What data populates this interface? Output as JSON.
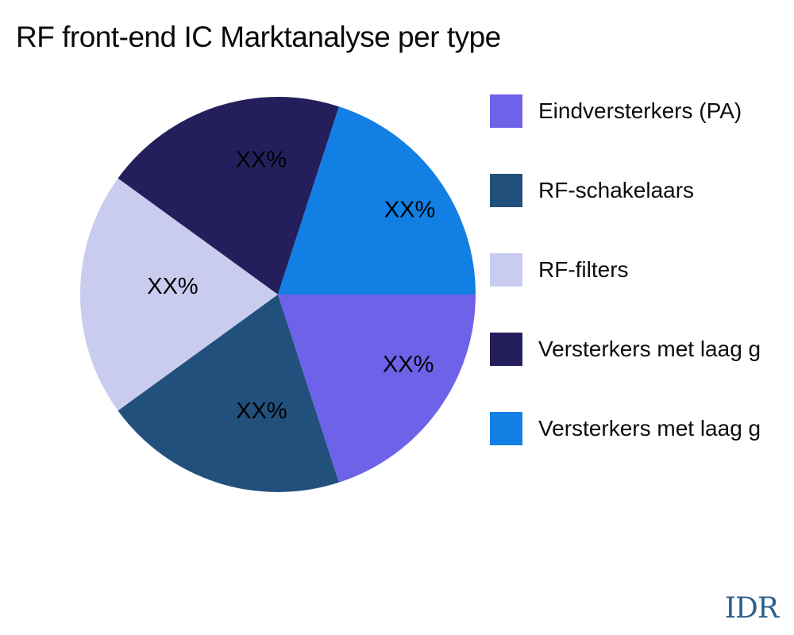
{
  "title": "RF front-end IC Marktanalyse per type",
  "watermark": {
    "text": "IDR",
    "color": "#2d5f8f"
  },
  "chart_data": {
    "type": "pie",
    "title": "RF front-end IC Marktanalyse per type",
    "legend_position": "right",
    "start_angle_deg": 0,
    "direction": "clockwise",
    "total": 100,
    "slices": [
      {
        "label": "Eindversterkers (PA)",
        "value": 20,
        "value_label": "XX%",
        "color": "#6e62e8"
      },
      {
        "label": "RF-schakelaars",
        "value": 20,
        "value_label": "XX%",
        "color": "#22507c"
      },
      {
        "label": "RF-filters",
        "value": 20,
        "value_label": "XX%",
        "color": "#c9ccee"
      },
      {
        "label": "Versterkers met laag g",
        "value": 20,
        "value_label": "XX%",
        "color": "#241f5c"
      },
      {
        "label": "Versterkers met laag g",
        "value": 20,
        "value_label": "XX%",
        "color": "#117fe3"
      }
    ]
  }
}
